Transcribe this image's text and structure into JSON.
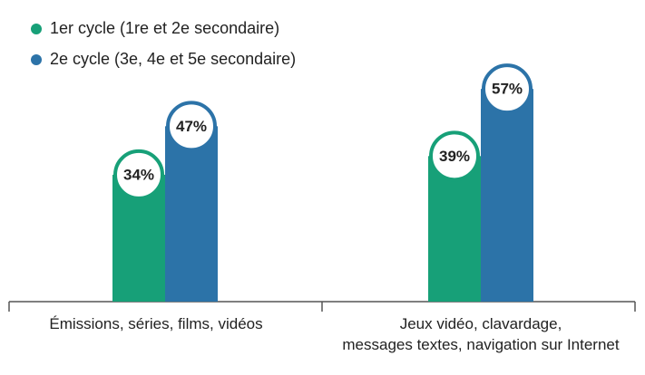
{
  "chart_data": {
    "type": "bar",
    "categories": [
      "Émissions, séries, films, vidéos",
      "Jeux vidéo, clavardage,\nmessages textes, navigation sur Internet"
    ],
    "series": [
      {
        "name": "1er cycle (1re et 2e secondaire)",
        "color": "#17a078",
        "values": [
          34,
          39
        ],
        "value_labels": [
          "34%",
          "39%"
        ]
      },
      {
        "name": "2e cycle (3e, 4e et 5e secondaire)",
        "color": "#2c73a8",
        "values": [
          47,
          57
        ],
        "value_labels": [
          "47%",
          "57%"
        ]
      }
    ]
  }
}
